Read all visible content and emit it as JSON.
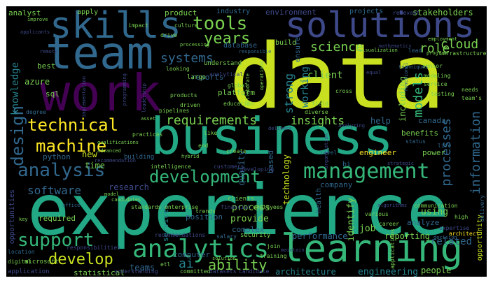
{
  "palette": {
    "background": "#000000",
    "colors": [
      "#c8e020",
      "#7ad151",
      "#35b779",
      "#22a884",
      "#1f9e89",
      "#26828e",
      "#31688e",
      "#3e4989",
      "#482878",
      "#440154",
      "#fde725",
      "#addc30"
    ]
  },
  "words": [
    "data",
    "experience",
    "business",
    "work",
    "team",
    "learning",
    "skills",
    "solutions",
    "management",
    "analytics",
    "analysis",
    "technical",
    "machine",
    "support",
    "design",
    "development",
    "tools",
    "years",
    "develop",
    "requirements",
    "systems",
    "science",
    "information",
    "processes",
    "models",
    "cloud",
    "role",
    "knowledge",
    "ability",
    "ai",
    "insights",
    "working",
    "strong",
    "software",
    "related",
    "client",
    "identify",
    "performance",
    "architecture",
    "engineering",
    "job",
    "provide",
    "process",
    "using",
    "quality",
    "reporting",
    "people",
    "teams",
    "statistical",
    "computer",
    "complex",
    "services",
    "position",
    "based",
    "company",
    "research",
    "help",
    "azure",
    "sql",
    "python",
    "time",
    "new",
    "best",
    "analyst",
    "apply",
    "product",
    "industry",
    "environment",
    "projects",
    "stakeholders",
    "reports",
    "database",
    "build",
    "ensure",
    "understand",
    "including",
    "platform",
    "canada",
    "benefits",
    "engineer",
    "power",
    "bi",
    "technology",
    "health",
    "opportunities",
    "required",
    "opportunity",
    "microsoft",
    "digital",
    "application",
    "location",
    "responsibilities",
    "recommendations",
    "salary",
    "security",
    "join",
    "training",
    "solution",
    "datasets",
    "candidate",
    "committed",
    "understanding",
    "etl",
    "enterprise",
    "standards",
    "candidates",
    "trends",
    "financial",
    "employees",
    "communication",
    "algorithms",
    "delivery",
    "high",
    "expertise",
    "architect",
    "decision",
    "various",
    "career",
    "applications",
    "analyze",
    "clients",
    "level",
    "developing",
    "customers",
    "intelligence",
    "recommendation",
    "advanced",
    "building",
    "create",
    "diverse",
    "status",
    "life",
    "field",
    "cross",
    "functional",
    "modeling",
    "service",
    "testing",
    "needs",
    "team's",
    "senior",
    "lead",
    "program",
    "relevant",
    "employment",
    "infrastructure",
    "drive",
    "culture",
    "impact",
    "processing",
    "looking",
    "large",
    "global",
    "collaborate",
    "responsible",
    "visualization",
    "techniques",
    "analytical",
    "education",
    "driven",
    "products",
    "pipelines",
    "practices",
    "qualifications",
    "degree",
    "leadership",
    "programming",
    "implementation",
    "remote",
    "improve",
    "applicants",
    "asset",
    "like",
    "end",
    "delivers",
    "analyzing",
    "organization",
    "key",
    "office",
    "model",
    "hybrid",
    "maintain",
    "operations",
    "equal",
    "strategic",
    "mathematics"
  ]
}
